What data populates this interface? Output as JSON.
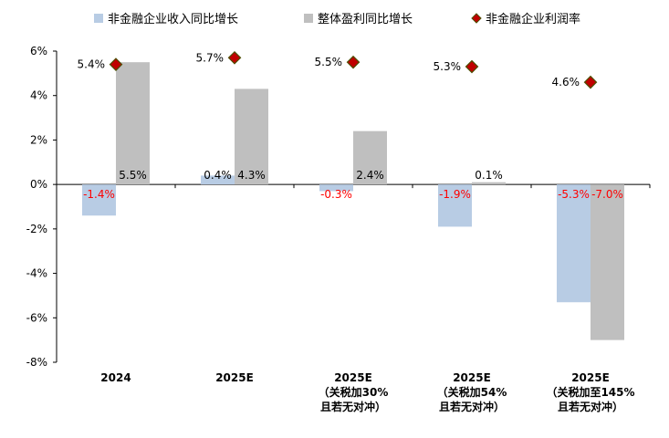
{
  "chart_data": {
    "type": "bar",
    "categories": [
      [
        "2024"
      ],
      [
        "2025E"
      ],
      [
        "2025E",
        "（关税加30%",
        "且若无对冲）"
      ],
      [
        "2025E",
        "（关税加54%",
        "且若无对冲）"
      ],
      [
        "2025E",
        "（关税加至145%",
        "且若无对冲）"
      ]
    ],
    "series": [
      {
        "name": "非金融企业收入同比增长",
        "type": "bar",
        "color": "#b8cce4",
        "values": [
          -1.4,
          0.4,
          -0.3,
          -1.9,
          -5.3
        ],
        "labels": [
          "-1.4%",
          "0.4%",
          "-0.3%",
          "-1.9%",
          "-5.3%"
        ]
      },
      {
        "name": "整体盈利同比增长",
        "type": "bar",
        "color": "#bfbfbf",
        "values": [
          5.5,
          4.3,
          2.4,
          0.1,
          -7.0
        ],
        "labels": [
          "5.5%",
          "4.3%",
          "2.4%",
          "0.1%",
          "-7.0%"
        ]
      },
      {
        "name": "非金融企业利润率",
        "type": "marker",
        "color": "#c00000",
        "values": [
          5.4,
          5.7,
          5.5,
          5.3,
          4.6
        ],
        "labels": [
          "5.4%",
          "5.7%",
          "5.5%",
          "5.3%",
          "4.6%"
        ]
      }
    ],
    "ylim": [
      -8,
      6
    ],
    "yticks": [
      "-8%",
      "-6%",
      "-4%",
      "-2%",
      "0%",
      "2%",
      "4%",
      "6%"
    ],
    "ytick_values": [
      -8,
      -6,
      -4,
      -2,
      0,
      2,
      4,
      6
    ],
    "legend": "top",
    "grid": false,
    "negative_label_color": "#ff0000"
  }
}
